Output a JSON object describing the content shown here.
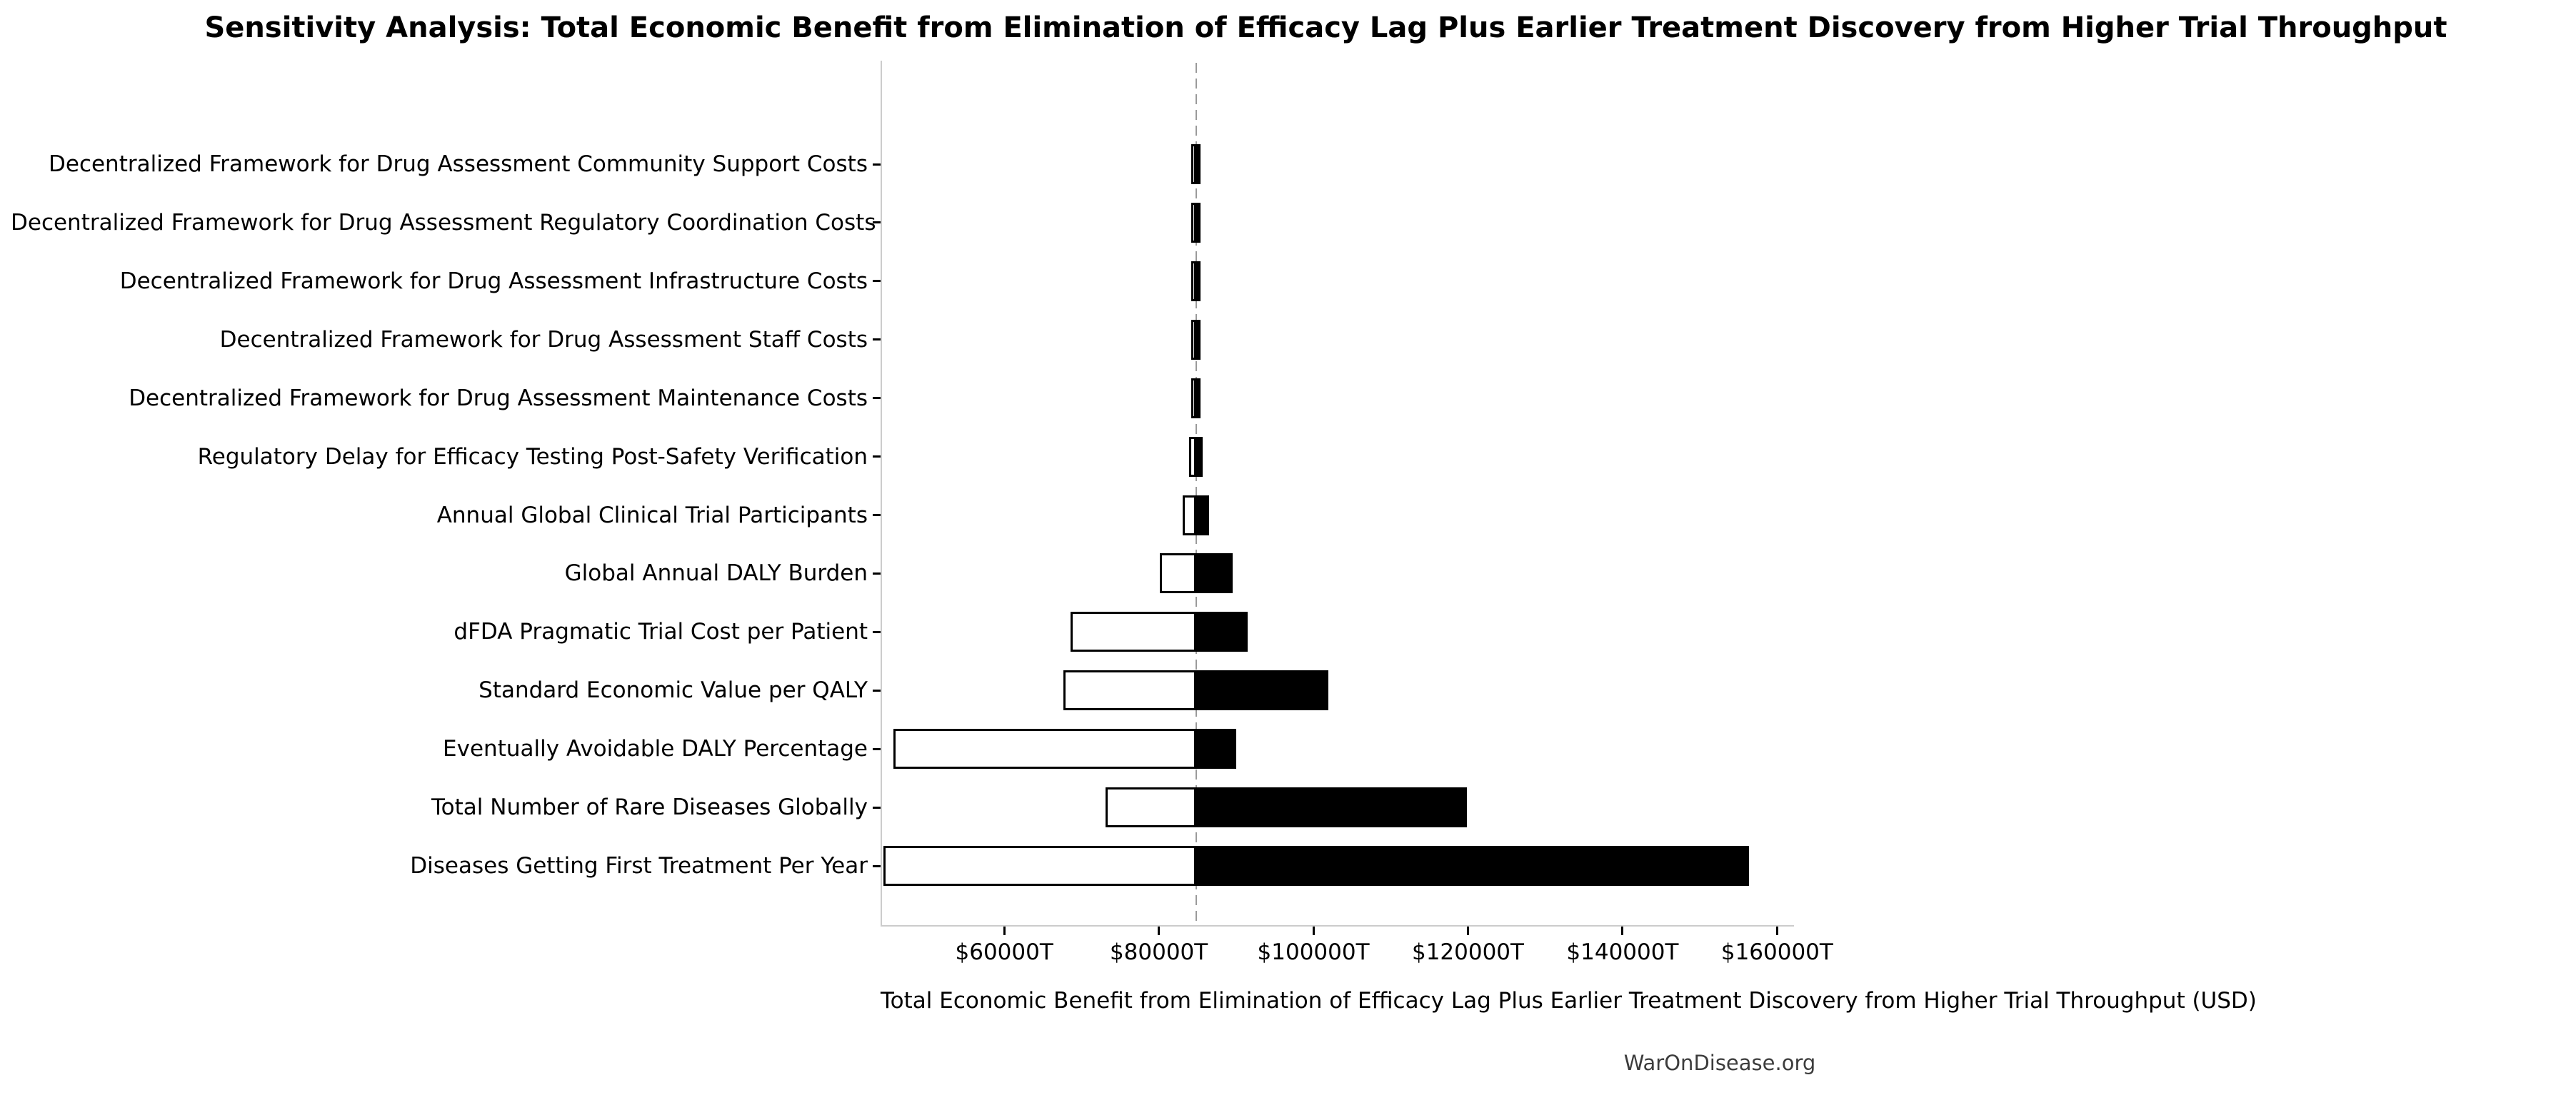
{
  "watermark": "WarOnDisease.org",
  "chart_data": {
    "type": "bar",
    "variant": "tornado-sensitivity",
    "title": "Sensitivity Analysis: Total Economic Benefit from Elimination of Efficacy Lag Plus Earlier Treatment Discovery from Higher Trial Throughput",
    "xlabel": "Total Economic Benefit from Elimination of Efficacy Lag Plus Earlier Treatment Discovery from Higher Trial Throughput (USD)",
    "ylabel": "",
    "xlim": [
      44000,
      162000
    ],
    "x_tick_unit": "trillions USD",
    "x_ticks": [
      {
        "value": 60000,
        "label": "$60000T"
      },
      {
        "value": 80000,
        "label": "$80000T"
      },
      {
        "value": 100000,
        "label": "$100000T"
      },
      {
        "value": 120000,
        "label": "$120000T"
      },
      {
        "value": 140000,
        "label": "$140000T"
      },
      {
        "value": 160000,
        "label": "$160000T"
      }
    ],
    "base_value": 84800,
    "grid": false,
    "legend": "none",
    "bar_colors": {
      "low_fill": "#ffffff",
      "high_fill": "#000000",
      "edge": "#000000",
      "baseline": "#9a9a9a",
      "spine": "#cccccc"
    },
    "parameters": [
      {
        "label": "Decentralized Framework for Drug Assessment Community Support Costs",
        "low": 84600,
        "high": 85200
      },
      {
        "label": "Decentralized Framework for Drug Assessment Regulatory Coordination Costs",
        "low": 84600,
        "high": 85200
      },
      {
        "label": "Decentralized Framework for Drug Assessment Infrastructure Costs",
        "low": 84600,
        "high": 85200
      },
      {
        "label": "Decentralized Framework for Drug Assessment Staff Costs",
        "low": 84600,
        "high": 85200
      },
      {
        "label": "Decentralized Framework for Drug Assessment Maintenance Costs",
        "low": 84650,
        "high": 85150
      },
      {
        "label": "Regulatory Delay for Efficacy Testing Post-Safety Verification",
        "low": 83900,
        "high": 85700
      },
      {
        "label": "Annual Global Clinical Trial Participants",
        "low": 83100,
        "high": 86500
      },
      {
        "label": "Global Annual DALY Burden",
        "low": 80100,
        "high": 89600
      },
      {
        "label": "dFDA Pragmatic Trial Cost per Patient",
        "low": 68600,
        "high": 91500
      },
      {
        "label": "Standard Economic Value per QALY",
        "low": 67700,
        "high": 101900
      },
      {
        "label": "Eventually Avoidable DALY Percentage",
        "low": 45700,
        "high": 90000
      },
      {
        "label": "Total Number of Rare Diseases Globally",
        "low": 73100,
        "high": 119900
      },
      {
        "label": "Diseases Getting First Treatment Per Year",
        "low": 44400,
        "high": 156400
      }
    ]
  }
}
